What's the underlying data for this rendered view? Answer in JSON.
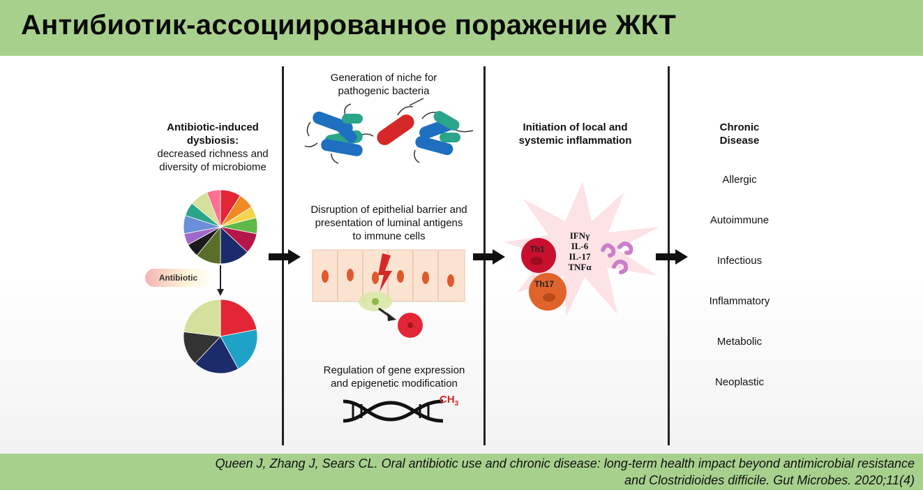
{
  "title": "Антибиотик-ассоциированное поражение ЖКТ",
  "column1": {
    "heading": "Antibiotic-induced\ndysbiosis:",
    "subheading": "decreased richness and\ndiversity of microbiome",
    "antibiotic_label": "Antibiotic"
  },
  "column2": {
    "niche_label": "Generation of niche for\npathogenic bacteria",
    "barrier_label": "Disruption of epithelial barrier and\npresentation of luminal antigens\nto immune cells",
    "gene_label": "Regulation of gene expression\nand epigenetic modification",
    "methyl_label": "CH",
    "methyl_sub": "3"
  },
  "column3": {
    "heading": "Initiation of local and\nsystemic inflammation",
    "th1": "Th1",
    "th17": "Th17",
    "cytokines": [
      "IFNγ",
      "IL-6",
      "IL-17",
      "TNFα"
    ]
  },
  "column4": {
    "heading": "Chronic\nDisease",
    "diseases": [
      "Allergic",
      "Autoimmune",
      "Infectious",
      "Inflammatory",
      "Metabolic",
      "Neoplastic"
    ]
  },
  "citation": {
    "line1": "Queen J, Zhang J, Sears CL. Oral antibiotic use and chronic disease: long-term health impact beyond antimicrobial resistance",
    "line2": "and Clostridioides difficile. Gut Microbes. 2020;11(4)"
  },
  "colors": {
    "header_green": "#a8d08d",
    "bacteria_blue": "#1f6fc0",
    "bacteria_green": "#2aa58a",
    "pathogen_red": "#d62828",
    "th1_red": "#c8102e",
    "th17_orange": "#e0632b"
  }
}
